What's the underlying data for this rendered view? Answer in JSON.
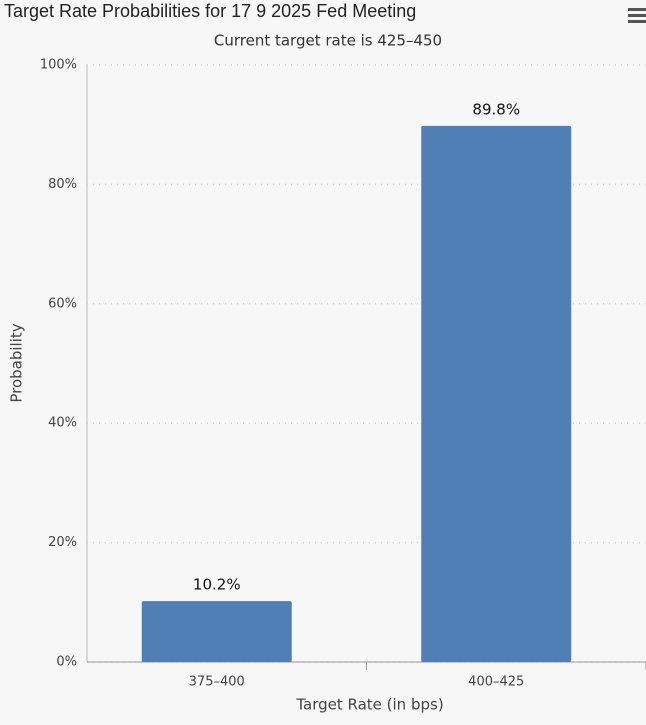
{
  "chart_data": {
    "type": "bar",
    "title": "Target Rate Probabilities for 17 9 2025 Fed Meeting",
    "subtitle": "Current target rate is 425–450",
    "x_label": "Target Rate (in bps)",
    "y_label": "Probability",
    "categories": [
      "375–400",
      "400–425"
    ],
    "values": [
      10.2,
      89.8
    ],
    "value_labels": [
      "10.2%",
      "89.8%"
    ],
    "color": "#4f7fb5",
    "ylim": [
      0,
      100
    ],
    "yticks": [
      {
        "value": 0,
        "label": "0%"
      },
      {
        "value": 20,
        "label": "20%"
      },
      {
        "value": 40,
        "label": "40%"
      },
      {
        "value": 60,
        "label": "60%"
      },
      {
        "value": 80,
        "label": "80%"
      },
      {
        "value": 100,
        "label": "100%"
      }
    ],
    "grid": true
  }
}
